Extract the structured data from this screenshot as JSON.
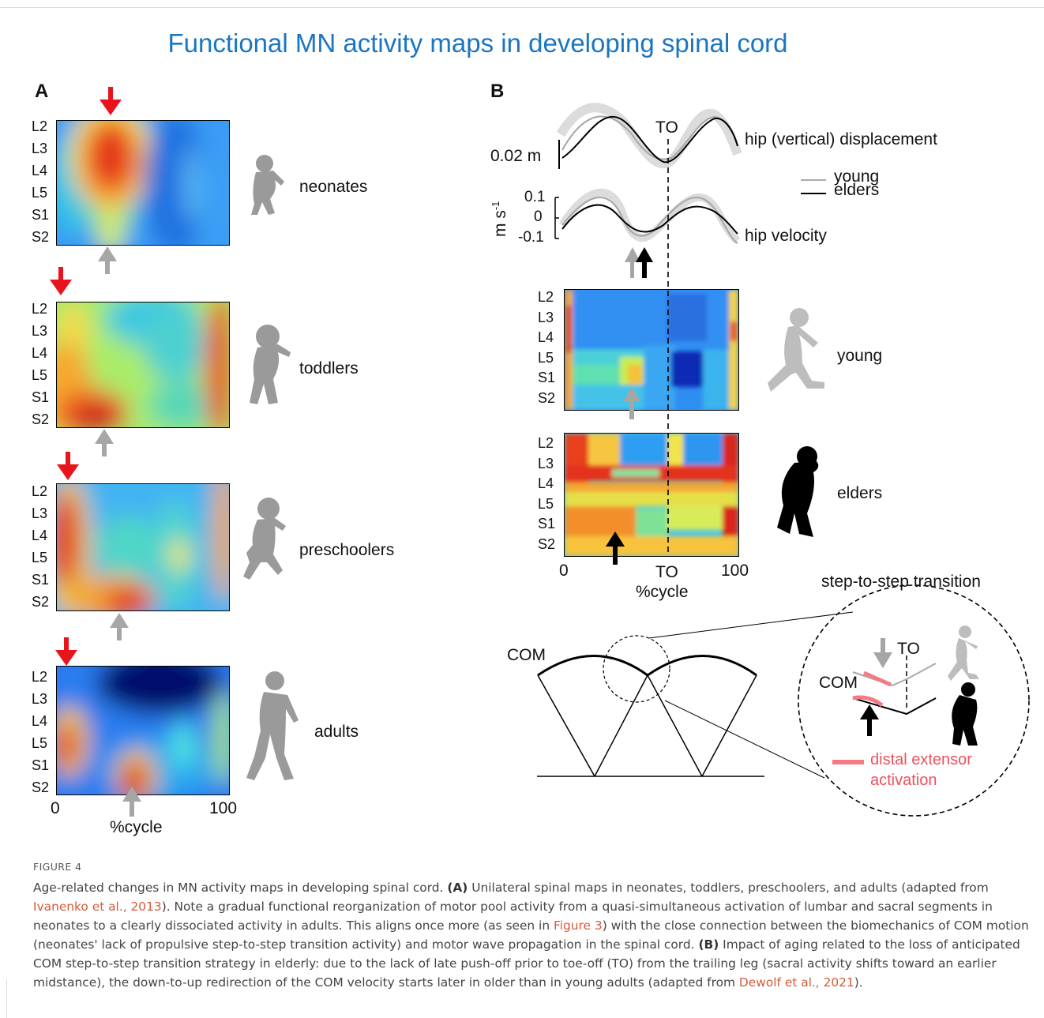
{
  "title": "Functional MN activity maps in developing spinal cord",
  "colors": {
    "title": "#1a75c2",
    "red_arrow": "#e8141c",
    "gray_arrow": "#a6a6a6",
    "silhouette": "#9a9a9a",
    "young_silhouette": "#bdbdbd",
    "pink": "#f37b84",
    "link": "#d35a3a"
  },
  "panel_a": {
    "letter": "A",
    "segments": [
      "L2",
      "L3",
      "L4",
      "L5",
      "S1",
      "S2"
    ],
    "groups": [
      {
        "label": "neonates",
        "peak_pct": 32,
        "gray_pct": 30
      },
      {
        "label": "toddlers",
        "peak_pct": 0,
        "gray_pct": 25
      },
      {
        "label": "preschoolers",
        "peak_pct": 0,
        "gray_pct": 35
      },
      {
        "label": "adults",
        "peak_pct": 0,
        "gray_pct": 42
      }
    ],
    "x_ticks": [
      "0",
      "100"
    ],
    "x_label": "%cycle"
  },
  "panel_b": {
    "letter": "B",
    "displacement": {
      "label": "hip (vertical) displacement",
      "scale": "0.02 m",
      "to": "TO"
    },
    "velocity": {
      "label": "hip velocity",
      "unit": "m s",
      "unit_sup": "-1",
      "ticks": [
        "0.1",
        "0",
        "-0.1"
      ]
    },
    "legend": [
      {
        "name": "young",
        "color": "#aaaaaa"
      },
      {
        "name": "elders",
        "color": "#000000"
      }
    ],
    "maps": [
      {
        "label": "young"
      },
      {
        "label": "elders"
      }
    ],
    "segments": [
      "L2",
      "L3",
      "L4",
      "L5",
      "S1",
      "S2"
    ],
    "x_ticks": [
      "0",
      "TO",
      "100"
    ],
    "x_label": "%cycle",
    "transition": {
      "title": "step-to-step transition",
      "com": "COM",
      "inset_com": "COM",
      "inset_to": "TO",
      "legend_line1": "distal extensor",
      "legend_line2": "activation"
    }
  },
  "caption": {
    "figure": "FIGURE 4",
    "p1": "Age-related changes in MN activity maps in developing spinal cord.",
    "a_label": "(A)",
    "a_text": "Unilateral spinal maps in neonates, toddlers, preschoolers, and adults (adapted from",
    "ref1": "Ivanenko et al., 2013",
    "a_text2": "). Note a gradual functional reorganization of motor pool activity from a quasi-simultaneous activation of lumbar and sacral segments in neonates to a clearly dissociated activity in adults. This aligns once more (as seen in",
    "ref2": "Figure 3",
    "a_text3": ") with the close connection between the biomechanics of COM motion (neonates' lack of propulsive step-to-step transition activity) and motor wave propagation in the spinal cord.",
    "b_label": "(B)",
    "b_text": "Impact of aging related to the loss of anticipated COM step-to-step transition strategy in elderly: due to the lack of late push-off prior to toe-off (TO) from the trailing leg (sacral activity shifts toward an earlier midstance), the down-to-up redirection of the COM velocity starts later in older than in young adults (adapted from",
    "ref3": "Dewolf et al., 2021",
    "b_text2": ")."
  }
}
